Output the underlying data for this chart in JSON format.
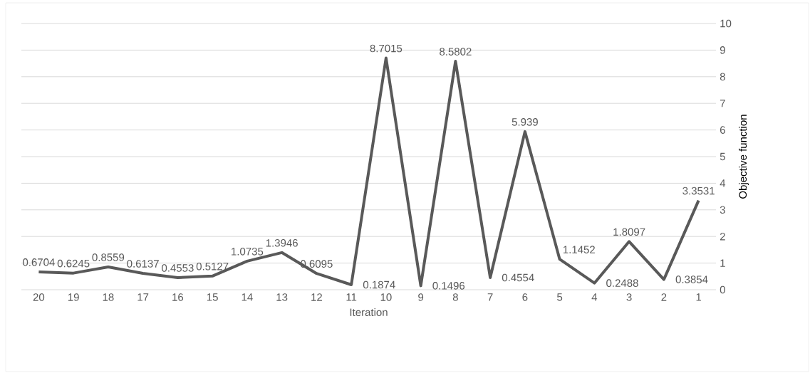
{
  "chart_data": {
    "type": "line",
    "xlabel": "Iteration",
    "ylabel": "Objective function",
    "categories": [
      "20",
      "19",
      "18",
      "17",
      "16",
      "15",
      "14",
      "13",
      "12",
      "11",
      "10",
      "9",
      "8",
      "7",
      "6",
      "5",
      "4",
      "3",
      "2",
      "1"
    ],
    "values": [
      0.6704,
      0.6245,
      0.8559,
      0.6137,
      0.4553,
      0.5127,
      1.0735,
      1.3946,
      0.6095,
      0.1874,
      8.7015,
      0.1496,
      8.5802,
      0.4554,
      5.939,
      1.1452,
      0.2488,
      1.8097,
      0.3854,
      3.3531
    ],
    "color": "#595959",
    "ylim": [
      0,
      10
    ],
    "yticks": [
      0,
      1,
      2,
      3,
      4,
      5,
      6,
      7,
      8,
      9,
      10
    ],
    "grid": "y",
    "data_labels": true,
    "line_style": "solid"
  }
}
